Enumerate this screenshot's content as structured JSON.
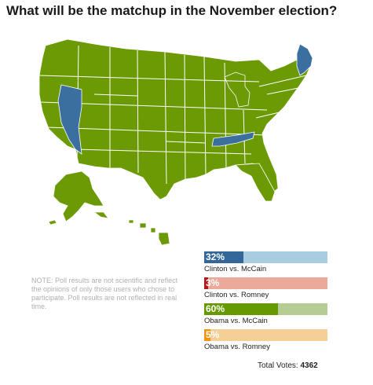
{
  "title": "What will be the matchup in the November election?",
  "map": {
    "colors": {
      "green": "#6b9a04",
      "blue": "#3a6fa0",
      "border": "#ffffff"
    },
    "highlighted_states_blue": [
      "Nevada",
      "Tennessee",
      "Maine"
    ]
  },
  "note": "NOTE: Poll results are not scientific and reflect the opinions of only those users who chose to participate. Poll results are not reflected in real time.",
  "results": [
    {
      "percent": 32,
      "percent_label": "32%",
      "label": "Clinton vs. McCain",
      "fill_color": "#336699",
      "track_color": "#a8cde1"
    },
    {
      "percent": 3,
      "percent_label": "3%",
      "label": "Clinton vs. Romney",
      "fill_color": "#b31b1b",
      "track_color": "#eba99a"
    },
    {
      "percent": 60,
      "percent_label": "60%",
      "label": "Obama vs. McCain",
      "fill_color": "#669900",
      "track_color": "#b5cd94"
    },
    {
      "percent": 5,
      "percent_label": "5%",
      "label": "Obama vs. Romney",
      "fill_color": "#f29611",
      "track_color": "#f5cf95"
    }
  ],
  "total": {
    "label": "Total Votes:",
    "value": "4362"
  }
}
